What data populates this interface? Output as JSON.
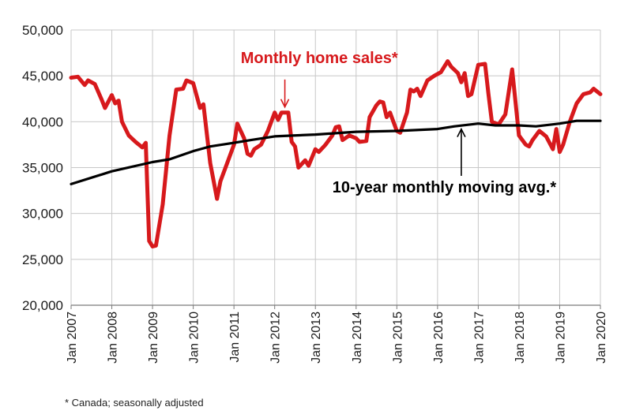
{
  "chart_data": {
    "type": "line",
    "title": "",
    "xlabel": "",
    "ylabel": "",
    "x_start": "2007-01",
    "x_end": "2020-01",
    "xlim": [
      "2007-01",
      "2020-01"
    ],
    "ylim": [
      20000,
      50000
    ],
    "grid": true,
    "y_ticks": [
      "20,000",
      "25,000",
      "30,000",
      "35,000",
      "40,000",
      "45,000",
      "50,000"
    ],
    "x_ticks": [
      "Jan 2007",
      "Jan 2008",
      "Jan 2009",
      "Jan 2010",
      "Jan 2011",
      "Jan 2012",
      "Jan 2013",
      "Jan 2014",
      "Jan 2015",
      "Jan 2016",
      "Jan 2017",
      "Jan 2018",
      "Jan 2019",
      "Jan 2020"
    ],
    "series": [
      {
        "name": "Monthly home sales*",
        "color": "#d7191c",
        "points": [
          [
            "2007-01",
            44800
          ],
          [
            "2007-03",
            44900
          ],
          [
            "2007-05",
            44000
          ],
          [
            "2007-06",
            44500
          ],
          [
            "2007-08",
            44100
          ],
          [
            "2007-10",
            42400
          ],
          [
            "2007-11",
            41500
          ],
          [
            "2008-01",
            42900
          ],
          [
            "2008-02",
            42000
          ],
          [
            "2008-03",
            42300
          ],
          [
            "2008-04",
            40000
          ],
          [
            "2008-06",
            38500
          ],
          [
            "2008-08",
            37800
          ],
          [
            "2008-10",
            37200
          ],
          [
            "2008-11",
            37700
          ],
          [
            "2008-12",
            27000
          ],
          [
            "2009-01",
            26400
          ],
          [
            "2009-02",
            26500
          ],
          [
            "2009-04",
            31000
          ],
          [
            "2009-06",
            38500
          ],
          [
            "2009-08",
            43500
          ],
          [
            "2009-10",
            43600
          ],
          [
            "2009-11",
            44500
          ],
          [
            "2010-01",
            44200
          ],
          [
            "2010-03",
            41500
          ],
          [
            "2010-04",
            41900
          ],
          [
            "2010-06",
            35500
          ],
          [
            "2010-08",
            31600
          ],
          [
            "2010-09",
            33500
          ],
          [
            "2010-11",
            35500
          ],
          [
            "2011-01",
            37500
          ],
          [
            "2011-02",
            39800
          ],
          [
            "2011-04",
            38200
          ],
          [
            "2011-05",
            36500
          ],
          [
            "2011-06",
            36300
          ],
          [
            "2011-07",
            37000
          ],
          [
            "2011-09",
            37500
          ],
          [
            "2011-11",
            39000
          ],
          [
            "2012-01",
            41000
          ],
          [
            "2012-02",
            40200
          ],
          [
            "2012-03",
            41000
          ],
          [
            "2012-05",
            41000
          ],
          [
            "2012-06",
            37800
          ],
          [
            "2012-07",
            37300
          ],
          [
            "2012-08",
            35000
          ],
          [
            "2012-10",
            35800
          ],
          [
            "2012-11",
            35200
          ],
          [
            "2013-01",
            37000
          ],
          [
            "2013-02",
            36700
          ],
          [
            "2013-04",
            37500
          ],
          [
            "2013-06",
            38500
          ],
          [
            "2013-07",
            39400
          ],
          [
            "2013-08",
            39500
          ],
          [
            "2013-09",
            38000
          ],
          [
            "2013-11",
            38500
          ],
          [
            "2014-01",
            38200
          ],
          [
            "2014-02",
            37800
          ],
          [
            "2014-04",
            37900
          ],
          [
            "2014-05",
            40500
          ],
          [
            "2014-07",
            41800
          ],
          [
            "2014-08",
            42200
          ],
          [
            "2014-09",
            42100
          ],
          [
            "2014-10",
            40500
          ],
          [
            "2014-11",
            41000
          ],
          [
            "2015-01",
            39000
          ],
          [
            "2015-02",
            38800
          ],
          [
            "2015-04",
            41000
          ],
          [
            "2015-05",
            43500
          ],
          [
            "2015-06",
            43300
          ],
          [
            "2015-07",
            43600
          ],
          [
            "2015-08",
            42800
          ],
          [
            "2015-10",
            44500
          ],
          [
            "2015-12",
            45000
          ],
          [
            "2016-02",
            45400
          ],
          [
            "2016-04",
            46600
          ],
          [
            "2016-05",
            46000
          ],
          [
            "2016-07",
            45300
          ],
          [
            "2016-08",
            44300
          ],
          [
            "2016-09",
            45300
          ],
          [
            "2016-10",
            42800
          ],
          [
            "2016-11",
            43000
          ],
          [
            "2017-01",
            46200
          ],
          [
            "2017-03",
            46300
          ],
          [
            "2017-04",
            43000
          ],
          [
            "2017-05",
            40000
          ],
          [
            "2017-07",
            39700
          ],
          [
            "2017-09",
            40800
          ],
          [
            "2017-11",
            45700
          ],
          [
            "2018-01",
            38500
          ],
          [
            "2018-02",
            38000
          ],
          [
            "2018-03",
            37500
          ],
          [
            "2018-04",
            37300
          ],
          [
            "2018-05",
            38000
          ],
          [
            "2018-07",
            39000
          ],
          [
            "2018-09",
            38400
          ],
          [
            "2018-11",
            37000
          ],
          [
            "2018-12",
            39200
          ],
          [
            "2019-01",
            36700
          ],
          [
            "2019-02",
            37500
          ],
          [
            "2019-04",
            40000
          ],
          [
            "2019-06",
            42000
          ],
          [
            "2019-08",
            43000
          ],
          [
            "2019-10",
            43200
          ],
          [
            "2019-11",
            43600
          ],
          [
            "2020-01",
            43000
          ]
        ]
      },
      {
        "name": "10-year monthly moving avg.*",
        "color": "#000000",
        "points": [
          [
            "2007-01",
            33200
          ],
          [
            "2008-01",
            34600
          ],
          [
            "2009-01",
            35600
          ],
          [
            "2009-06",
            35900
          ],
          [
            "2010-01",
            36800
          ],
          [
            "2010-06",
            37300
          ],
          [
            "2011-01",
            37700
          ],
          [
            "2011-06",
            38000
          ],
          [
            "2012-01",
            38400
          ],
          [
            "2013-01",
            38600
          ],
          [
            "2014-01",
            38900
          ],
          [
            "2015-01",
            39000
          ],
          [
            "2016-01",
            39200
          ],
          [
            "2016-06",
            39500
          ],
          [
            "2017-01",
            39800
          ],
          [
            "2017-06",
            39600
          ],
          [
            "2018-01",
            39600
          ],
          [
            "2018-06",
            39500
          ],
          [
            "2019-01",
            39800
          ],
          [
            "2019-06",
            40100
          ],
          [
            "2020-01",
            40100
          ]
        ]
      }
    ],
    "annotations": [
      {
        "text": "Monthly home sales*",
        "color": "#d7191c",
        "label_x": "2011-03",
        "label_y": 46400,
        "arrow_from": [
          "2012-04",
          44600
        ],
        "arrow_to": [
          "2012-04",
          41600
        ]
      },
      {
        "text": "10-year monthly moving avg.*",
        "color": "#000000",
        "label_x": "2013-06",
        "label_y": 32300,
        "arrow_from": [
          "2016-08",
          34100
        ],
        "arrow_to": [
          "2016-08",
          39200
        ]
      }
    ]
  },
  "footnote": "* Canada; seasonally adjusted"
}
